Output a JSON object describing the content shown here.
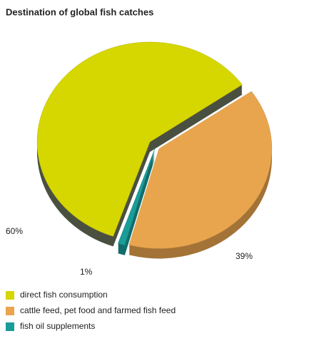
{
  "chart_data": {
    "type": "pie",
    "title": "Destination of global fish catches",
    "categories": [
      "direct fish consumption",
      "cattle feed, pet food and farmed fish feed",
      "fish oil supplements"
    ],
    "values": [
      60,
      39,
      1
    ],
    "value_labels": [
      "60%",
      "39%",
      "1%"
    ],
    "colors": [
      "#d6d600",
      "#e9a54e",
      "#1a9c98"
    ]
  }
}
